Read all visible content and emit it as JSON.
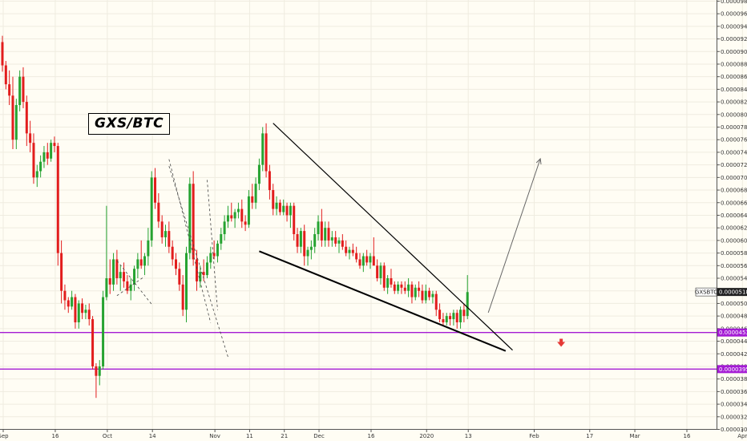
{
  "chart_data": {
    "type": "candlestick",
    "title": "GXS/BTC",
    "symbol_tag": "GXSBTC",
    "y_axis": {
      "position": "right",
      "ylim": [
        3e-05,
        9.85e-05
      ],
      "ticks": [
        "0.00003000",
        "0.00003200",
        "0.00003400",
        "0.00003600",
        "0.00003800",
        "0.00004000",
        "0.00004200",
        "0.00004400",
        "0.00004600",
        "0.00004800",
        "0.00005000",
        "0.00005200",
        "0.00005400",
        "0.00005600",
        "0.00005800",
        "0.00006000",
        "0.00006200",
        "0.00006400",
        "0.00006600",
        "0.00006800",
        "0.00007000",
        "0.00007200",
        "0.00007400",
        "0.00007600",
        "0.00007800",
        "0.00008000",
        "0.00008200",
        "0.00008400",
        "0.00008600",
        "0.00008800",
        "0.00009000",
        "0.00009200",
        "0.00009400",
        "0.00009600",
        "0.00009800"
      ]
    },
    "x_axis": {
      "ticks": [
        {
          "label": "Sep",
          "day": 0
        },
        {
          "label": "16",
          "day": 15
        },
        {
          "label": "Oct",
          "day": 30
        },
        {
          "label": "14",
          "day": 43
        },
        {
          "label": "Nov",
          "day": 61
        },
        {
          "label": "11",
          "day": 71
        },
        {
          "label": "21",
          "day": 81
        },
        {
          "label": "Dec",
          "day": 91
        },
        {
          "label": "16",
          "day": 106
        },
        {
          "label": "2020",
          "day": 122
        },
        {
          "label": "13",
          "day": 134
        },
        {
          "label": "Feb",
          "day": 153
        },
        {
          "label": "17",
          "day": 169
        },
        {
          "label": "Mar",
          "day": 182
        },
        {
          "label": "16",
          "day": 197
        },
        {
          "label": "Apr",
          "day": 213
        }
      ]
    },
    "price_tags": [
      {
        "label": "GXSBTC",
        "value": "0.00005182",
        "price": 5.182e-05,
        "color": "#202020",
        "text_color": "#ffffff"
      },
      {
        "label": "",
        "value": "0.00004538",
        "price": 4.538e-05,
        "color": "#a41bd4",
        "text_color": "#ffffff"
      },
      {
        "label": "",
        "value": "0.00003957",
        "price": 3.957e-05,
        "color": "#a41bd4",
        "text_color": "#ffffff"
      }
    ],
    "horizontal_lines": [
      {
        "price": 4.538e-05,
        "color": "#a41bd4"
      },
      {
        "price": 3.957e-05,
        "color": "#a41bd4"
      }
    ],
    "trendlines": [
      {
        "from": {
          "day": 78,
          "price": 7.861e-05
        },
        "to": {
          "day": 147,
          "price": 4.258e-05
        },
        "color": "#000000",
        "width": 1.2
      },
      {
        "from": {
          "day": 74,
          "price": 5.829e-05
        },
        "to": {
          "day": 145,
          "price": 4.245e-05
        },
        "color": "#000000",
        "width": 2
      }
    ],
    "projection_arrow": {
      "from": {
        "day": 140,
        "price": 4.853e-05
      },
      "to": {
        "day": 155,
        "price": 7.297e-05
      },
      "color": "#666666"
    },
    "down_arrow": {
      "day": 161,
      "price": 4.362e-05,
      "color": "#e53935"
    },
    "dashed_lines": [
      {
        "from": {
          "day": 48,
          "price": 7.289e-05
        },
        "to": {
          "day": 60,
          "price": 4.693e-05
        }
      },
      {
        "from": {
          "day": 48,
          "price": 7.181e-05
        },
        "to": {
          "day": 65,
          "price": 4.15e-05
        }
      },
      {
        "from": {
          "day": 59,
          "price": 6.961e-05
        },
        "to": {
          "day": 62,
          "price": 4.895e-05
        }
      },
      {
        "from": {
          "day": 33,
          "price": 5.68e-05
        },
        "to": {
          "day": 43,
          "price": 4.987e-05
        }
      },
      {
        "from": {
          "day": 33,
          "price": 5.123e-05
        },
        "to": {
          "day": 41,
          "price": 5.429e-05
        }
      }
    ],
    "candles": [
      {
        "o": 9.15e-05,
        "h": 9.25e-05,
        "l": 8.68e-05,
        "c": 8.78e-05
      },
      {
        "o": 8.78e-05,
        "h": 8.85e-05,
        "l": 8.4e-05,
        "c": 8.48e-05
      },
      {
        "o": 8.48e-05,
        "h": 8.7e-05,
        "l": 8.15e-05,
        "c": 8.3e-05
      },
      {
        "o": 8.3e-05,
        "h": 8.6e-05,
        "l": 7.45e-05,
        "c": 7.6e-05
      },
      {
        "o": 7.6e-05,
        "h": 8.25e-05,
        "l": 7.45e-05,
        "c": 8.15e-05
      },
      {
        "o": 8.15e-05,
        "h": 8.7e-05,
        "l": 8.05e-05,
        "c": 8.6e-05
      },
      {
        "o": 8.6e-05,
        "h": 8.75e-05,
        "l": 8.1e-05,
        "c": 8.2e-05
      },
      {
        "o": 8.2e-05,
        "h": 8.3e-05,
        "l": 7.5e-05,
        "c": 7.7e-05
      },
      {
        "o": 7.7e-05,
        "h": 7.9e-05,
        "l": 7.4e-05,
        "c": 7.55e-05
      },
      {
        "o": 7.55e-05,
        "h": 7.7e-05,
        "l": 6.9e-05,
        "c": 7e-05
      },
      {
        "o": 7e-05,
        "h": 7.2e-05,
        "l": 6.85e-05,
        "c": 7.1e-05
      },
      {
        "o": 7.1e-05,
        "h": 7.35e-05,
        "l": 7e-05,
        "c": 7.25e-05
      },
      {
        "o": 7.25e-05,
        "h": 7.5e-05,
        "l": 7.15e-05,
        "c": 7.4e-05
      },
      {
        "o": 7.4e-05,
        "h": 7.55e-05,
        "l": 7.2e-05,
        "c": 7.3e-05
      },
      {
        "o": 7.3e-05,
        "h": 7.6e-05,
        "l": 7.25e-05,
        "c": 7.55e-05
      },
      {
        "o": 7.55e-05,
        "h": 7.65e-05,
        "l": 7.4e-05,
        "c": 7.5e-05
      },
      {
        "o": 7.5e-05,
        "h": 7.55e-05,
        "l": 5.6e-05,
        "c": 5.8e-05
      },
      {
        "o": 5.8e-05,
        "h": 6e-05,
        "l": 5e-05,
        "c": 5.2e-05
      },
      {
        "o": 5.2e-05,
        "h": 5.3e-05,
        "l": 4.9e-05,
        "c": 5.05e-05
      },
      {
        "o": 5.05e-05,
        "h": 5.1e-05,
        "l": 4.85e-05,
        "c": 4.95e-05
      },
      {
        "o": 4.95e-05,
        "h": 5.2e-05,
        "l": 4.9e-05,
        "c": 5.1e-05
      },
      {
        "o": 5.1e-05,
        "h": 5.15e-05,
        "l": 4.6e-05,
        "c": 4.7e-05
      },
      {
        "o": 4.7e-05,
        "h": 5.05e-05,
        "l": 4.6e-05,
        "c": 5e-05
      },
      {
        "o": 5e-05,
        "h": 5.08e-05,
        "l": 4.75e-05,
        "c": 4.85e-05
      },
      {
        "o": 4.85e-05,
        "h": 4.98e-05,
        "l": 4.75e-05,
        "c": 4.9e-05
      },
      {
        "o": 4.9e-05,
        "h": 5e-05,
        "l": 4.65e-05,
        "c": 4.75e-05
      },
      {
        "o": 4.75e-05,
        "h": 4.8e-05,
        "l": 3.95e-05,
        "c": 4e-05
      },
      {
        "o": 4e-05,
        "h": 4.05e-05,
        "l": 3.5e-05,
        "c": 3.85e-05
      },
      {
        "o": 3.85e-05,
        "h": 4.1e-05,
        "l": 3.7e-05,
        "c": 4e-05
      },
      {
        "o": 4e-05,
        "h": 5.2e-05,
        "l": 3.95e-05,
        "c": 5.1e-05
      },
      {
        "o": 5.1e-05,
        "h": 6.55e-05,
        "l": 5.05e-05,
        "c": 5.4e-05
      },
      {
        "o": 5.4e-05,
        "h": 5.7e-05,
        "l": 5.15e-05,
        "c": 5.3e-05
      },
      {
        "o": 5.3e-05,
        "h": 5.8e-05,
        "l": 5.2e-05,
        "c": 5.7e-05
      },
      {
        "o": 5.7e-05,
        "h": 5.85e-05,
        "l": 5.3e-05,
        "c": 5.4e-05
      },
      {
        "o": 5.4e-05,
        "h": 5.6e-05,
        "l": 5.2e-05,
        "c": 5.5e-05
      },
      {
        "o": 5.5e-05,
        "h": 5.65e-05,
        "l": 5.25e-05,
        "c": 5.35e-05
      },
      {
        "o": 5.35e-05,
        "h": 5.45e-05,
        "l": 5.15e-05,
        "c": 5.2e-05
      },
      {
        "o": 5.2e-05,
        "h": 5.4e-05,
        "l": 5.05e-05,
        "c": 5.3e-05
      },
      {
        "o": 5.3e-05,
        "h": 5.6e-05,
        "l": 5.2e-05,
        "c": 5.55e-05
      },
      {
        "o": 5.55e-05,
        "h": 5.8e-05,
        "l": 5.4e-05,
        "c": 5.7e-05
      },
      {
        "o": 5.7e-05,
        "h": 6e-05,
        "l": 5.55e-05,
        "c": 5.6e-05
      },
      {
        "o": 5.6e-05,
        "h": 5.8e-05,
        "l": 5.45e-05,
        "c": 5.75e-05
      },
      {
        "o": 5.75e-05,
        "h": 6.2e-05,
        "l": 5.6e-05,
        "c": 6e-05
      },
      {
        "o": 6e-05,
        "h": 7.1e-05,
        "l": 5.9e-05,
        "c": 7e-05
      },
      {
        "o": 7e-05,
        "h": 7.15e-05,
        "l": 6.5e-05,
        "c": 6.6e-05
      },
      {
        "o": 6.6e-05,
        "h": 6.75e-05,
        "l": 6.2e-05,
        "c": 6.3e-05
      },
      {
        "o": 6.3e-05,
        "h": 6.4e-05,
        "l": 5.95e-05,
        "c": 6.05e-05
      },
      {
        "o": 6.05e-05,
        "h": 6.25e-05,
        "l": 5.9e-05,
        "c": 6.15e-05
      },
      {
        "o": 6.15e-05,
        "h": 6.3e-05,
        "l": 5.8e-05,
        "c": 5.9e-05
      },
      {
        "o": 5.9e-05,
        "h": 6e-05,
        "l": 5.6e-05,
        "c": 5.7e-05
      },
      {
        "o": 5.7e-05,
        "h": 5.8e-05,
        "l": 5.45e-05,
        "c": 5.55e-05
      },
      {
        "o": 5.55e-05,
        "h": 5.65e-05,
        "l": 5.2e-05,
        "c": 5.3e-05
      },
      {
        "o": 5.3e-05,
        "h": 5.45e-05,
        "l": 4.8e-05,
        "c": 4.9e-05
      },
      {
        "o": 4.9e-05,
        "h": 5.9e-05,
        "l": 4.7e-05,
        "c": 5.8e-05
      },
      {
        "o": 5.8e-05,
        "h": 7e-05,
        "l": 5.7e-05,
        "c": 6.9e-05
      },
      {
        "o": 6.9e-05,
        "h": 7.1e-05,
        "l": 5.6e-05,
        "c": 5.7e-05
      },
      {
        "o": 5.7e-05,
        "h": 5.85e-05,
        "l": 5.2e-05,
        "c": 5.35e-05
      },
      {
        "o": 5.35e-05,
        "h": 5.6e-05,
        "l": 5.25e-05,
        "c": 5.5e-05
      },
      {
        "o": 5.5e-05,
        "h": 5.7e-05,
        "l": 5.35e-05,
        "c": 5.45e-05
      },
      {
        "o": 5.45e-05,
        "h": 5.75e-05,
        "l": 5.4e-05,
        "c": 5.65e-05
      },
      {
        "o": 5.65e-05,
        "h": 5.9e-05,
        "l": 5.55e-05,
        "c": 5.8e-05
      },
      {
        "o": 5.8e-05,
        "h": 6e-05,
        "l": 5.7e-05,
        "c": 5.75e-05
      },
      {
        "o": 5.75e-05,
        "h": 6e-05,
        "l": 5.65e-05,
        "c": 5.95e-05
      },
      {
        "o": 5.95e-05,
        "h": 6.2e-05,
        "l": 5.85e-05,
        "c": 6.1e-05
      },
      {
        "o": 6.1e-05,
        "h": 6.4e-05,
        "l": 6e-05,
        "c": 6.3e-05
      },
      {
        "o": 6.3e-05,
        "h": 6.55e-05,
        "l": 6.2e-05,
        "c": 6.4e-05
      },
      {
        "o": 6.4e-05,
        "h": 6.6e-05,
        "l": 6.3e-05,
        "c": 6.35e-05
      },
      {
        "o": 6.35e-05,
        "h": 6.5e-05,
        "l": 6.2e-05,
        "c": 6.45e-05
      },
      {
        "o": 6.45e-05,
        "h": 6.6e-05,
        "l": 6.35e-05,
        "c": 6.5e-05
      },
      {
        "o": 6.5e-05,
        "h": 6.65e-05,
        "l": 6.2e-05,
        "c": 6.3e-05
      },
      {
        "o": 6.3e-05,
        "h": 6.4e-05,
        "l": 6.15e-05,
        "c": 6.25e-05
      },
      {
        "o": 6.25e-05,
        "h": 6.8e-05,
        "l": 6.2e-05,
        "c": 6.7e-05
      },
      {
        "o": 6.7e-05,
        "h": 6.9e-05,
        "l": 6.5e-05,
        "c": 6.6e-05
      },
      {
        "o": 6.6e-05,
        "h": 7e-05,
        "l": 6.5e-05,
        "c": 6.9e-05
      },
      {
        "o": 6.9e-05,
        "h": 7.3e-05,
        "l": 6.8e-05,
        "c": 7.2e-05
      },
      {
        "o": 7.2e-05,
        "h": 7.8e-05,
        "l": 7.1e-05,
        "c": 7.7e-05
      },
      {
        "o": 7.7e-05,
        "h": 7.86e-05,
        "l": 7e-05,
        "c": 7.1e-05
      },
      {
        "o": 7.1e-05,
        "h": 7.2e-05,
        "l": 6.65e-05,
        "c": 6.8e-05
      },
      {
        "o": 6.8e-05,
        "h": 6.9e-05,
        "l": 6.4e-05,
        "c": 6.5e-05
      },
      {
        "o": 6.5e-05,
        "h": 6.7e-05,
        "l": 6.4e-05,
        "c": 6.6e-05
      },
      {
        "o": 6.6e-05,
        "h": 6.65e-05,
        "l": 6.4e-05,
        "c": 6.45e-05
      },
      {
        "o": 6.45e-05,
        "h": 6.65e-05,
        "l": 6.4e-05,
        "c": 6.55e-05
      },
      {
        "o": 6.55e-05,
        "h": 6.6e-05,
        "l": 6.3e-05,
        "c": 6.4e-05
      },
      {
        "o": 6.4e-05,
        "h": 6.6e-05,
        "l": 6.2e-05,
        "c": 6.55e-05
      },
      {
        "o": 6.55e-05,
        "h": 6.6e-05,
        "l": 6e-05,
        "c": 6.1e-05
      },
      {
        "o": 6.1e-05,
        "h": 6.2e-05,
        "l": 5.8e-05,
        "c": 5.9e-05
      },
      {
        "o": 5.9e-05,
        "h": 6.2e-05,
        "l": 5.8e-05,
        "c": 6.15e-05
      },
      {
        "o": 6.15e-05,
        "h": 6.25e-05,
        "l": 5.6e-05,
        "c": 5.75e-05
      },
      {
        "o": 5.75e-05,
        "h": 5.9e-05,
        "l": 5.6e-05,
        "c": 5.85e-05
      },
      {
        "o": 5.85e-05,
        "h": 6e-05,
        "l": 5.7e-05,
        "c": 5.9e-05
      },
      {
        "o": 5.9e-05,
        "h": 6.2e-05,
        "l": 5.8e-05,
        "c": 6.1e-05
      },
      {
        "o": 6.1e-05,
        "h": 6.4e-05,
        "l": 6e-05,
        "c": 6.3e-05
      },
      {
        "o": 6.3e-05,
        "h": 6.5e-05,
        "l": 5.9e-05,
        "c": 6e-05
      },
      {
        "o": 6e-05,
        "h": 6.3e-05,
        "l": 5.9e-05,
        "c": 6.2e-05
      },
      {
        "o": 6.2e-05,
        "h": 6.3e-05,
        "l": 5.9e-05,
        "c": 6e-05
      },
      {
        "o": 6e-05,
        "h": 6.15e-05,
        "l": 5.9e-05,
        "c": 6.05e-05
      },
      {
        "o": 6.05e-05,
        "h": 6.15e-05,
        "l": 5.9e-05,
        "c": 5.95e-05
      },
      {
        "o": 5.95e-05,
        "h": 6.05e-05,
        "l": 5.8e-05,
        "c": 6e-05
      },
      {
        "o": 6e-05,
        "h": 6.1e-05,
        "l": 5.85e-05,
        "c": 5.9e-05
      },
      {
        "o": 5.9e-05,
        "h": 6e-05,
        "l": 5.75e-05,
        "c": 5.8e-05
      },
      {
        "o": 5.8e-05,
        "h": 5.9e-05,
        "l": 5.7e-05,
        "c": 5.85e-05
      },
      {
        "o": 5.85e-05,
        "h": 5.95e-05,
        "l": 5.75e-05,
        "c": 5.8e-05
      },
      {
        "o": 5.8e-05,
        "h": 5.9e-05,
        "l": 5.65e-05,
        "c": 5.7e-05
      },
      {
        "o": 5.7e-05,
        "h": 5.8e-05,
        "l": 5.55e-05,
        "c": 5.6e-05
      },
      {
        "o": 5.6e-05,
        "h": 5.8e-05,
        "l": 5.5e-05,
        "c": 5.75e-05
      },
      {
        "o": 5.75e-05,
        "h": 5.85e-05,
        "l": 5.6e-05,
        "c": 5.65e-05
      },
      {
        "o": 5.65e-05,
        "h": 5.8e-05,
        "l": 5.55e-05,
        "c": 5.75e-05
      },
      {
        "o": 5.75e-05,
        "h": 6.05e-05,
        "l": 5.65e-05,
        "c": 5.6e-05
      },
      {
        "o": 5.6e-05,
        "h": 5.7e-05,
        "l": 5.35e-05,
        "c": 5.4e-05
      },
      {
        "o": 5.4e-05,
        "h": 5.65e-05,
        "l": 5.3e-05,
        "c": 5.6e-05
      },
      {
        "o": 5.6e-05,
        "h": 5.65e-05,
        "l": 5.2e-05,
        "c": 5.25e-05
      },
      {
        "o": 5.25e-05,
        "h": 5.45e-05,
        "l": 5.15e-05,
        "c": 5.4e-05
      },
      {
        "o": 5.4e-05,
        "h": 5.55e-05,
        "l": 5.25e-05,
        "c": 5.3e-05
      },
      {
        "o": 5.3e-05,
        "h": 5.35e-05,
        "l": 5.15e-05,
        "c": 5.2e-05
      },
      {
        "o": 5.2e-05,
        "h": 5.35e-05,
        "l": 5.15e-05,
        "c": 5.3e-05
      },
      {
        "o": 5.3e-05,
        "h": 5.35e-05,
        "l": 5.15e-05,
        "c": 5.25e-05
      },
      {
        "o": 5.25e-05,
        "h": 5.35e-05,
        "l": 5.15e-05,
        "c": 5.2e-05
      },
      {
        "o": 5.2e-05,
        "h": 5.4e-05,
        "l": 5.1e-05,
        "c": 5.3e-05
      },
      {
        "o": 5.3e-05,
        "h": 5.35e-05,
        "l": 5e-05,
        "c": 5.1e-05
      },
      {
        "o": 5.1e-05,
        "h": 5.3e-05,
        "l": 5.05e-05,
        "c": 5.25e-05
      },
      {
        "o": 5.25e-05,
        "h": 5.35e-05,
        "l": 5.1e-05,
        "c": 5.2e-05
      },
      {
        "o": 5.2e-05,
        "h": 5.3e-05,
        "l": 5e-05,
        "c": 5.05e-05
      },
      {
        "o": 5.05e-05,
        "h": 5.3e-05,
        "l": 5e-05,
        "c": 5.2e-05
      },
      {
        "o": 5.2e-05,
        "h": 5.25e-05,
        "l": 5.05e-05,
        "c": 5.1e-05
      },
      {
        "o": 5.1e-05,
        "h": 5.2e-05,
        "l": 5e-05,
        "c": 5.15e-05
      },
      {
        "o": 5.15e-05,
        "h": 5.2e-05,
        "l": 4.8e-05,
        "c": 4.9e-05
      },
      {
        "o": 4.9e-05,
        "h": 5e-05,
        "l": 4.7e-05,
        "c": 4.75e-05
      },
      {
        "o": 4.75e-05,
        "h": 4.85e-05,
        "l": 4.65e-05,
        "c": 4.7e-05
      },
      {
        "o": 4.7e-05,
        "h": 4.85e-05,
        "l": 4.65e-05,
        "c": 4.8e-05
      },
      {
        "o": 4.8e-05,
        "h": 4.85e-05,
        "l": 4.65e-05,
        "c": 4.75e-05
      },
      {
        "o": 4.75e-05,
        "h": 4.9e-05,
        "l": 4.65e-05,
        "c": 4.85e-05
      },
      {
        "o": 4.85e-05,
        "h": 4.9e-05,
        "l": 4.6e-05,
        "c": 4.7e-05
      },
      {
        "o": 4.7e-05,
        "h": 4.95e-05,
        "l": 4.6e-05,
        "c": 4.9e-05
      },
      {
        "o": 4.9e-05,
        "h": 5e-05,
        "l": 4.7e-05,
        "c": 4.8e-05
      },
      {
        "o": 4.8e-05,
        "h": 5.45e-05,
        "l": 4.75e-05,
        "c": 5.18e-05
      }
    ]
  }
}
